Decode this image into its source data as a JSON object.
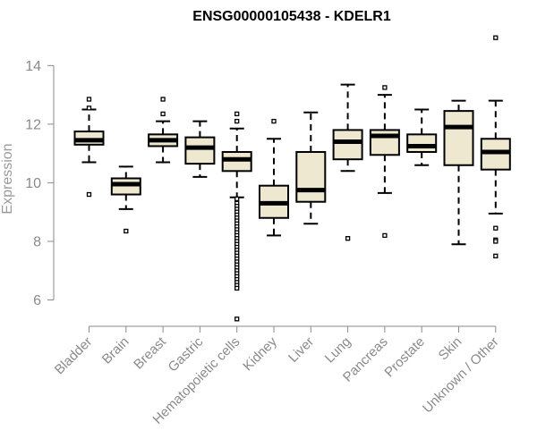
{
  "chart_data": {
    "type": "boxplot",
    "title": "ENSG00000105438 - KDELR1",
    "xlabel": "",
    "ylabel": "Expression",
    "ylim": [
      5.1,
      15.2
    ],
    "yticks": [
      6,
      8,
      10,
      12,
      14
    ],
    "box_fill": "#efe8d1",
    "categories": [
      "Bladder",
      "Brain",
      "Breast",
      "Gastric",
      "Hematopoietic cells",
      "Kidney",
      "Liver",
      "Lung",
      "Pancreas",
      "Prostate",
      "Skin",
      "Unknown / Other"
    ],
    "boxes": [
      {
        "category": "Bladder",
        "whisker_low": 10.7,
        "q1": 11.3,
        "median": 11.45,
        "q3": 11.75,
        "whisker_high": 12.5,
        "outliers": [
          9.6,
          12.55,
          12.85
        ]
      },
      {
        "category": "Brain",
        "whisker_low": 9.1,
        "q1": 9.6,
        "median": 9.95,
        "q3": 10.15,
        "whisker_high": 10.55,
        "outliers": [
          8.35
        ]
      },
      {
        "category": "Breast",
        "whisker_low": 10.7,
        "q1": 11.25,
        "median": 11.45,
        "q3": 11.65,
        "whisker_high": 12.1,
        "outliers": [
          12.35,
          12.85
        ]
      },
      {
        "category": "Gastric",
        "whisker_low": 10.2,
        "q1": 10.65,
        "median": 11.2,
        "q3": 11.55,
        "whisker_high": 12.1,
        "outliers": []
      },
      {
        "category": "Hematopoietic cells",
        "whisker_low": 9.5,
        "q1": 10.4,
        "median": 10.8,
        "q3": 11.05,
        "whisker_high": 11.85,
        "outliers": [
          12.1,
          12.35,
          9.45,
          9.3,
          9.2,
          9.1,
          9.0,
          8.9,
          8.8,
          8.7,
          8.6,
          8.5,
          8.4,
          8.3,
          8.2,
          8.1,
          8.0,
          7.9,
          7.8,
          7.7,
          7.6,
          7.5,
          7.4,
          7.3,
          7.2,
          7.1,
          7.0,
          6.9,
          6.8,
          6.7,
          6.6,
          6.5,
          6.4,
          5.35
        ]
      },
      {
        "category": "Kidney",
        "whisker_low": 8.2,
        "q1": 8.8,
        "median": 9.3,
        "q3": 9.9,
        "whisker_high": 11.5,
        "outliers": [
          12.1
        ]
      },
      {
        "category": "Liver",
        "whisker_low": 8.6,
        "q1": 9.35,
        "median": 9.75,
        "q3": 11.05,
        "whisker_high": 12.4,
        "outliers": []
      },
      {
        "category": "Lung",
        "whisker_low": 10.4,
        "q1": 10.8,
        "median": 11.4,
        "q3": 11.8,
        "whisker_high": 13.35,
        "outliers": [
          8.1
        ]
      },
      {
        "category": "Pancreas",
        "whisker_low": 9.65,
        "q1": 10.95,
        "median": 11.6,
        "q3": 11.8,
        "whisker_high": 13.0,
        "outliers": [
          13.25,
          8.2
        ]
      },
      {
        "category": "Prostate",
        "whisker_low": 10.6,
        "q1": 11.05,
        "median": 11.25,
        "q3": 11.65,
        "whisker_high": 12.5,
        "outliers": []
      },
      {
        "category": "Skin",
        "whisker_low": 7.9,
        "q1": 10.6,
        "median": 11.9,
        "q3": 12.45,
        "whisker_high": 12.8,
        "outliers": []
      },
      {
        "category": "Unknown / Other",
        "whisker_low": 8.95,
        "q1": 10.45,
        "median": 11.05,
        "q3": 11.5,
        "whisker_high": 12.8,
        "outliers": [
          14.95,
          8.45,
          8.05,
          8.0,
          7.5
        ]
      }
    ]
  }
}
